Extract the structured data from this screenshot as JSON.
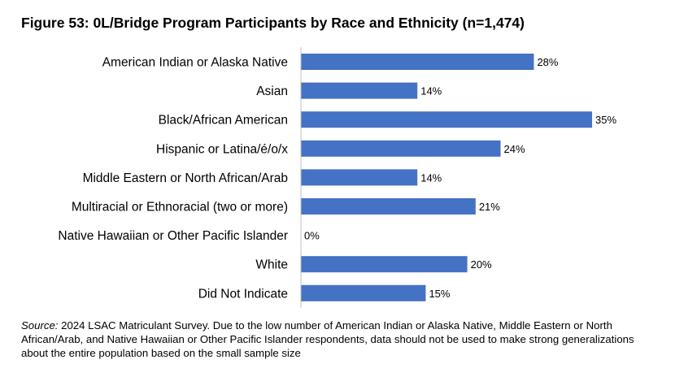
{
  "title": "Figure 53: 0L/Bridge Program Participants by Race and Ethnicity (n=1,474)",
  "source": {
    "label": "Source:",
    "text": "2024 LSAC Matriculant Survey. Due to the low number of American Indian or Alaska Native, Middle Eastern or North African/Arab, and Native Hawaiian or Other Pacific Islander respondents, data should not be used to make strong generalizations about the entire population based on the small sample size"
  },
  "colors": {
    "bar": "#4472C4",
    "axis": "#bfbfbf"
  },
  "chart_data": {
    "type": "bar",
    "orientation": "horizontal",
    "title": "Figure 53: 0L/Bridge Program Participants by Race and Ethnicity (n=1,474)",
    "categories": [
      "American Indian or Alaska Native",
      "Asian",
      "Black/African American",
      "Hispanic or Latina/é/o/x",
      "Middle Eastern or North African/Arab",
      "Multiracial or Ethnoracial (two or more)",
      "Native Hawaiian or Other Pacific Islander",
      "White",
      "Did Not Indicate"
    ],
    "values": [
      28,
      14,
      35,
      24,
      14,
      21,
      0,
      20,
      15
    ],
    "value_labels": [
      "28%",
      "14%",
      "35%",
      "24%",
      "14%",
      "21%",
      "0%",
      "20%",
      "15%"
    ],
    "unit": "%",
    "xlim": [
      0,
      35
    ],
    "grid": false,
    "legend": "none"
  }
}
